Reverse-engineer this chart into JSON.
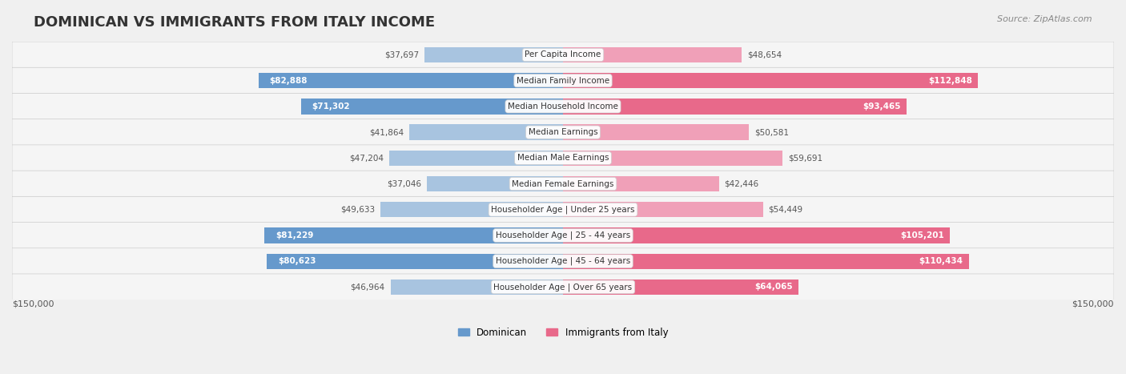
{
  "title": "DOMINICAN VS IMMIGRANTS FROM ITALY INCOME",
  "source": "Source: ZipAtlas.com",
  "categories": [
    "Per Capita Income",
    "Median Family Income",
    "Median Household Income",
    "Median Earnings",
    "Median Male Earnings",
    "Median Female Earnings",
    "Householder Age | Under 25 years",
    "Householder Age | 25 - 44 years",
    "Householder Age | 45 - 64 years",
    "Householder Age | Over 65 years"
  ],
  "dominican_values": [
    37697,
    82888,
    71302,
    41864,
    47204,
    37046,
    49633,
    81229,
    80623,
    46964
  ],
  "italy_values": [
    48654,
    112848,
    93465,
    50581,
    59691,
    42446,
    54449,
    105201,
    110434,
    64065
  ],
  "dominican_labels": [
    "$37,697",
    "$82,888",
    "$71,302",
    "$41,864",
    "$47,204",
    "$37,046",
    "$49,633",
    "$81,229",
    "$80,623",
    "$46,964"
  ],
  "italy_labels": [
    "$48,654",
    "$112,848",
    "$93,465",
    "$50,581",
    "$59,691",
    "$42,446",
    "$54,449",
    "$105,201",
    "$110,434",
    "$64,065"
  ],
  "dominican_color_light": "#a8c4e0",
  "dominican_color_dark": "#6699cc",
  "italy_color_light": "#f0a0b8",
  "italy_color_dark": "#e8698a",
  "max_value": 150000,
  "x_label_left": "$150,000",
  "x_label_right": "$150,000",
  "legend_dominican": "Dominican",
  "legend_italy": "Immigrants from Italy",
  "bg_color": "#f0f0f0",
  "bar_bg_color": "#e8e8e8",
  "row_bg_color": "#f5f5f5"
}
